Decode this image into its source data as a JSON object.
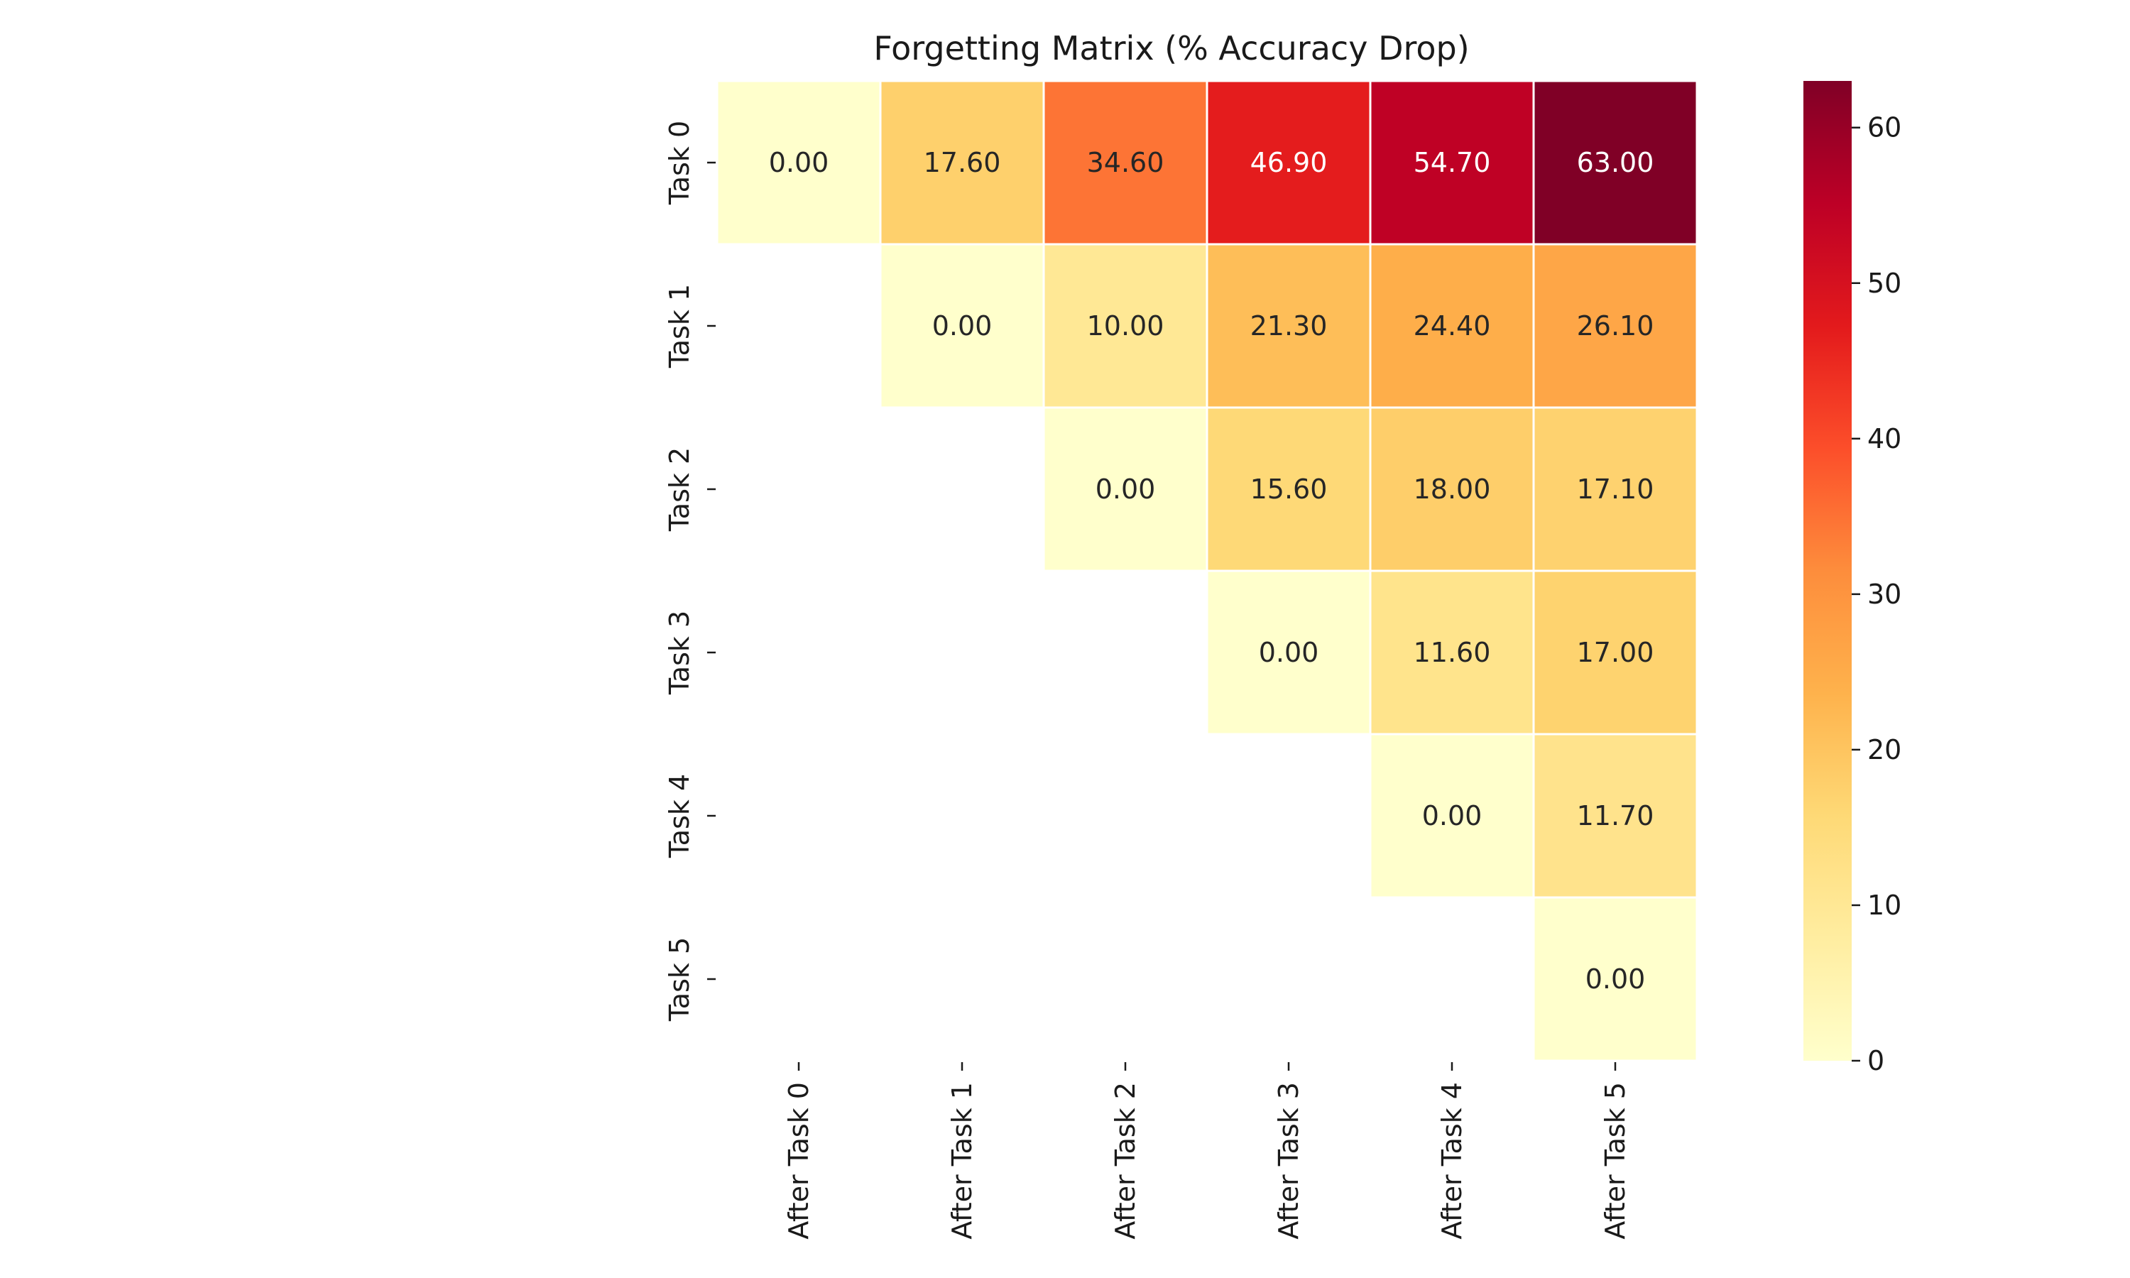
{
  "chart_data": {
    "type": "heatmap",
    "title": "Forgetting Matrix (% Accuracy Drop)",
    "xlabel": "",
    "ylabel": "",
    "x_categories": [
      "After Task 0",
      "After Task 1",
      "After Task 2",
      "After Task 3",
      "After Task 4",
      "After Task 5"
    ],
    "y_categories": [
      "Task 0",
      "Task 1",
      "Task 2",
      "Task 3",
      "Task 4",
      "Task 5"
    ],
    "values": [
      [
        0.0,
        17.6,
        34.6,
        46.9,
        54.7,
        63.0
      ],
      [
        null,
        0.0,
        10.0,
        21.3,
        24.4,
        26.1
      ],
      [
        null,
        null,
        0.0,
        15.6,
        18.0,
        17.1
      ],
      [
        null,
        null,
        null,
        0.0,
        11.6,
        17.0
      ],
      [
        null,
        null,
        null,
        null,
        0.0,
        11.7
      ],
      [
        null,
        null,
        null,
        null,
        null,
        0.0
      ]
    ],
    "value_labels": [
      [
        "0.00",
        "17.60",
        "34.60",
        "46.90",
        "54.70",
        "63.00"
      ],
      [
        "",
        "0.00",
        "10.00",
        "21.30",
        "24.40",
        "26.10"
      ],
      [
        "",
        "",
        "0.00",
        "15.60",
        "18.00",
        "17.10"
      ],
      [
        "",
        "",
        "",
        "0.00",
        "11.60",
        "17.00"
      ],
      [
        "",
        "",
        "",
        "",
        "0.00",
        "11.70"
      ],
      [
        "",
        "",
        "",
        "",
        "",
        "0.00"
      ]
    ],
    "mask": "lower-triangle",
    "colormap": "YlOrRd",
    "color_range": [
      0,
      63
    ],
    "colorbar": {
      "ticks": [
        0,
        10,
        20,
        30,
        40,
        50,
        60
      ],
      "tick_labels": [
        "0",
        "10",
        "20",
        "30",
        "40",
        "50",
        "60"
      ],
      "placement": "right"
    },
    "annotation_colors": {
      "dark": "#262626",
      "light": "#ffffff"
    },
    "cell_border_color": "#ffffff",
    "grid": false
  }
}
